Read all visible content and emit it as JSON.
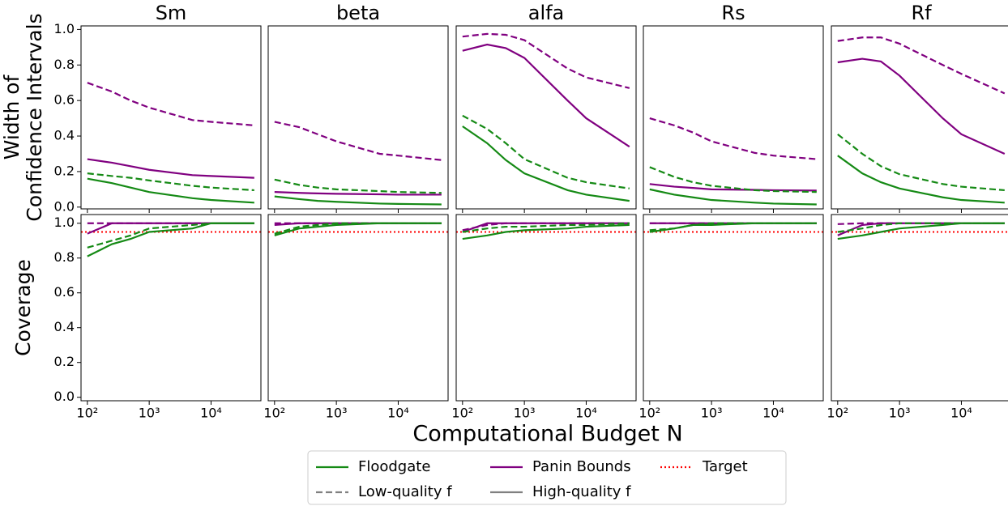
{
  "chart_data": [
    {
      "type": "line",
      "title": "Sm",
      "ylabel": [
        "Width of",
        "Confidence Intervals"
      ],
      "x": [
        100,
        250,
        500,
        1000,
        5000,
        10000,
        50000
      ],
      "xlim": [
        79,
        64000
      ],
      "xticks": [
        100,
        1000,
        10000
      ],
      "ylim": [
        -0.01,
        1.02
      ],
      "yticks": [
        {
          "value": 0,
          "label": "0.0"
        },
        0.2,
        0.4,
        0.6,
        0.8,
        {
          "value": 1,
          "label": "1.0"
        }
      ],
      "series": [
        {
          "color": "#800080",
          "dash": "dashed",
          "values": [
            0.7,
            0.65,
            0.6,
            0.56,
            0.49,
            0.48,
            0.46
          ]
        },
        {
          "color": "#800080",
          "dash": "solid",
          "values": [
            0.27,
            0.25,
            0.23,
            0.21,
            0.18,
            0.175,
            0.165
          ]
        },
        {
          "color": "#158a15",
          "dash": "dashed",
          "values": [
            0.19,
            0.175,
            0.165,
            0.15,
            0.12,
            0.11,
            0.095
          ]
        },
        {
          "color": "#158a15",
          "dash": "solid",
          "values": [
            0.16,
            0.135,
            0.11,
            0.085,
            0.05,
            0.04,
            0.025
          ]
        }
      ]
    },
    {
      "type": "line",
      "title": "beta",
      "x": [
        100,
        250,
        500,
        1000,
        5000,
        10000,
        50000
      ],
      "xlim": [
        79,
        64000
      ],
      "xticks": [
        100,
        1000,
        10000
      ],
      "ylim": [
        -0.01,
        1.02
      ],
      "series": [
        {
          "color": "#800080",
          "dash": "dashed",
          "values": [
            0.48,
            0.45,
            0.41,
            0.37,
            0.3,
            0.29,
            0.265
          ]
        },
        {
          "color": "#800080",
          "dash": "solid",
          "values": [
            0.085,
            0.08,
            0.077,
            0.075,
            0.072,
            0.07,
            0.07
          ]
        },
        {
          "color": "#158a15",
          "dash": "dashed",
          "values": [
            0.155,
            0.125,
            0.11,
            0.1,
            0.09,
            0.085,
            0.08
          ]
        },
        {
          "color": "#158a15",
          "dash": "solid",
          "values": [
            0.06,
            0.045,
            0.035,
            0.03,
            0.02,
            0.018,
            0.015
          ]
        }
      ]
    },
    {
      "type": "line",
      "title": "alfa",
      "x": [
        100,
        250,
        500,
        1000,
        5000,
        10000,
        50000
      ],
      "xlim": [
        79,
        64000
      ],
      "xticks": [
        100,
        1000,
        10000
      ],
      "ylim": [
        -0.01,
        1.02
      ],
      "series": [
        {
          "color": "#800080",
          "dash": "dashed",
          "values": [
            0.96,
            0.975,
            0.97,
            0.94,
            0.78,
            0.73,
            0.67
          ]
        },
        {
          "color": "#800080",
          "dash": "solid",
          "values": [
            0.88,
            0.915,
            0.895,
            0.84,
            0.6,
            0.5,
            0.34
          ]
        },
        {
          "color": "#158a15",
          "dash": "dashed",
          "values": [
            0.515,
            0.44,
            0.36,
            0.27,
            0.165,
            0.14,
            0.105
          ]
        },
        {
          "color": "#158a15",
          "dash": "solid",
          "values": [
            0.455,
            0.36,
            0.265,
            0.19,
            0.095,
            0.07,
            0.035
          ]
        }
      ]
    },
    {
      "type": "line",
      "title": "Rs",
      "x": [
        100,
        250,
        500,
        1000,
        5000,
        10000,
        50000
      ],
      "xlim": [
        79,
        64000
      ],
      "xticks": [
        100,
        1000,
        10000
      ],
      "ylim": [
        -0.01,
        1.02
      ],
      "series": [
        {
          "color": "#800080",
          "dash": "dashed",
          "values": [
            0.5,
            0.46,
            0.42,
            0.37,
            0.305,
            0.29,
            0.27
          ]
        },
        {
          "color": "#800080",
          "dash": "solid",
          "values": [
            0.13,
            0.115,
            0.108,
            0.1,
            0.097,
            0.095,
            0.093
          ]
        },
        {
          "color": "#158a15",
          "dash": "dashed",
          "values": [
            0.225,
            0.17,
            0.14,
            0.12,
            0.095,
            0.09,
            0.085
          ]
        },
        {
          "color": "#158a15",
          "dash": "solid",
          "values": [
            0.1,
            0.07,
            0.055,
            0.04,
            0.025,
            0.02,
            0.015
          ]
        }
      ]
    },
    {
      "type": "line",
      "title": "Rf",
      "x": [
        100,
        250,
        500,
        1000,
        5000,
        10000,
        50000
      ],
      "xlim": [
        79,
        64000
      ],
      "xticks": [
        100,
        1000,
        10000
      ],
      "ylim": [
        -0.01,
        1.02
      ],
      "series": [
        {
          "color": "#800080",
          "dash": "dashed",
          "values": [
            0.935,
            0.955,
            0.955,
            0.92,
            0.8,
            0.75,
            0.64
          ]
        },
        {
          "color": "#800080",
          "dash": "solid",
          "values": [
            0.815,
            0.835,
            0.82,
            0.74,
            0.5,
            0.41,
            0.3
          ]
        },
        {
          "color": "#158a15",
          "dash": "dashed",
          "values": [
            0.41,
            0.3,
            0.23,
            0.185,
            0.13,
            0.115,
            0.095
          ]
        },
        {
          "color": "#158a15",
          "dash": "solid",
          "values": [
            0.29,
            0.19,
            0.14,
            0.105,
            0.055,
            0.04,
            0.025
          ]
        }
      ]
    },
    {
      "type": "line",
      "ylabel": [
        "Coverage"
      ],
      "x": [
        100,
        250,
        500,
        1000,
        5000,
        10000,
        50000
      ],
      "xlim": [
        79,
        64000
      ],
      "xticks": [
        {
          "value": 100,
          "label": "10²"
        },
        {
          "value": 1000,
          "label": "10³"
        },
        {
          "value": 10000,
          "label": "10⁴"
        }
      ],
      "ylim": [
        -0.02,
        1.05
      ],
      "yticks": [
        {
          "value": 0,
          "label": "0.0"
        },
        0.2,
        0.4,
        0.6,
        0.8,
        {
          "value": 1,
          "label": "1.0"
        }
      ],
      "hline": {
        "value": 0.95,
        "color": "red"
      },
      "series": [
        {
          "color": "#800080",
          "dash": "dashed",
          "values": [
            1,
            1,
            1,
            1,
            1,
            1,
            1
          ]
        },
        {
          "color": "#800080",
          "dash": "solid",
          "values": [
            0.94,
            1,
            1,
            1,
            1,
            1,
            1
          ]
        },
        {
          "color": "#158a15",
          "dash": "dashed",
          "values": [
            0.86,
            0.9,
            0.93,
            0.97,
            0.99,
            1,
            1
          ]
        },
        {
          "color": "#158a15",
          "dash": "solid",
          "values": [
            0.81,
            0.88,
            0.91,
            0.95,
            0.97,
            1,
            1
          ]
        }
      ]
    },
    {
      "type": "line",
      "x": [
        100,
        250,
        500,
        1000,
        5000,
        10000,
        50000
      ],
      "xlim": [
        79,
        64000
      ],
      "xticks": [
        {
          "value": 100,
          "label": "10²"
        },
        {
          "value": 1000,
          "label": "10³"
        },
        {
          "value": 10000,
          "label": "10⁴"
        }
      ],
      "ylim": [
        -0.02,
        1.05
      ],
      "hline": {
        "value": 0.95,
        "color": "red"
      },
      "series": [
        {
          "color": "#800080",
          "dash": "dashed",
          "values": [
            1,
            1,
            1,
            1,
            1,
            1,
            1
          ]
        },
        {
          "color": "#800080",
          "dash": "solid",
          "values": [
            0.99,
            1,
            1,
            1,
            1,
            1,
            1
          ]
        },
        {
          "color": "#158a15",
          "dash": "dashed",
          "values": [
            0.94,
            0.98,
            0.99,
            1,
            1,
            1,
            1
          ]
        },
        {
          "color": "#158a15",
          "dash": "solid",
          "values": [
            0.93,
            0.97,
            0.98,
            0.99,
            1,
            1,
            1
          ]
        }
      ]
    },
    {
      "type": "line",
      "x": [
        100,
        250,
        500,
        1000,
        5000,
        10000,
        50000
      ],
      "xlim": [
        79,
        64000
      ],
      "xticks": [
        {
          "value": 100,
          "label": "10²"
        },
        {
          "value": 1000,
          "label": "10³"
        },
        {
          "value": 10000,
          "label": "10⁴"
        }
      ],
      "ylim": [
        -0.02,
        1.05
      ],
      "hline": {
        "value": 0.95,
        "color": "red"
      },
      "series": [
        {
          "color": "#800080",
          "dash": "dashed",
          "values": [
            0.96,
            0.99,
            1,
            1,
            1,
            1,
            1
          ]
        },
        {
          "color": "#800080",
          "dash": "solid",
          "values": [
            0.95,
            1,
            1,
            1,
            1,
            1,
            1
          ]
        },
        {
          "color": "#158a15",
          "dash": "dashed",
          "values": [
            0.95,
            0.97,
            0.98,
            0.98,
            0.99,
            0.99,
            1
          ]
        },
        {
          "color": "#158a15",
          "dash": "solid",
          "values": [
            0.91,
            0.93,
            0.95,
            0.96,
            0.97,
            0.98,
            0.99
          ]
        }
      ]
    },
    {
      "type": "line",
      "x": [
        100,
        250,
        500,
        1000,
        5000,
        10000,
        50000
      ],
      "xlim": [
        79,
        64000
      ],
      "xticks": [
        {
          "value": 100,
          "label": "10²"
        },
        {
          "value": 1000,
          "label": "10³"
        },
        {
          "value": 10000,
          "label": "10⁴"
        }
      ],
      "ylim": [
        -0.02,
        1.05
      ],
      "hline": {
        "value": 0.95,
        "color": "red"
      },
      "series": [
        {
          "color": "#800080",
          "dash": "dashed",
          "values": [
            1,
            1,
            1,
            1,
            1,
            1,
            1
          ]
        },
        {
          "color": "#800080",
          "dash": "solid",
          "values": [
            1,
            1,
            1,
            1,
            1,
            1,
            1
          ]
        },
        {
          "color": "#158a15",
          "dash": "dashed",
          "values": [
            0.96,
            0.97,
            0.99,
            1,
            1,
            1,
            1
          ]
        },
        {
          "color": "#158a15",
          "dash": "solid",
          "values": [
            0.95,
            0.97,
            0.99,
            0.99,
            1,
            1,
            1
          ]
        }
      ]
    },
    {
      "type": "line",
      "x": [
        100,
        250,
        500,
        1000,
        5000,
        10000,
        50000
      ],
      "xlim": [
        79,
        64000
      ],
      "xticks": [
        {
          "value": 100,
          "label": "10²"
        },
        {
          "value": 1000,
          "label": "10³"
        },
        {
          "value": 10000,
          "label": "10⁴"
        }
      ],
      "ylim": [
        -0.02,
        1.05
      ],
      "hline": {
        "value": 0.95,
        "color": "red"
      },
      "series": [
        {
          "color": "#800080",
          "dash": "dashed",
          "values": [
            0.995,
            1,
            1,
            1,
            1,
            1,
            1
          ]
        },
        {
          "color": "#800080",
          "dash": "solid",
          "values": [
            0.93,
            0.99,
            1,
            1,
            1,
            1,
            1
          ]
        },
        {
          "color": "#158a15",
          "dash": "dashed",
          "values": [
            0.95,
            0.97,
            0.99,
            1,
            1,
            1,
            1
          ]
        },
        {
          "color": "#158a15",
          "dash": "solid",
          "values": [
            0.91,
            0.93,
            0.95,
            0.97,
            0.99,
            1,
            1
          ]
        }
      ]
    }
  ],
  "figure": {
    "xlabel": "Computational Budget N",
    "log_x": true,
    "legend": [
      {
        "label": "Floodgate",
        "color": "#158a15",
        "dash": "solid"
      },
      {
        "label": "Panin Bounds",
        "color": "#800080",
        "dash": "solid"
      },
      {
        "label": "Target",
        "color": "red",
        "dash": "dotted"
      },
      {
        "label": "Low-quality f",
        "color": "#808080",
        "dash": "dashed"
      },
      {
        "label": "High-quality f",
        "color": "#808080",
        "dash": "solid"
      }
    ]
  }
}
